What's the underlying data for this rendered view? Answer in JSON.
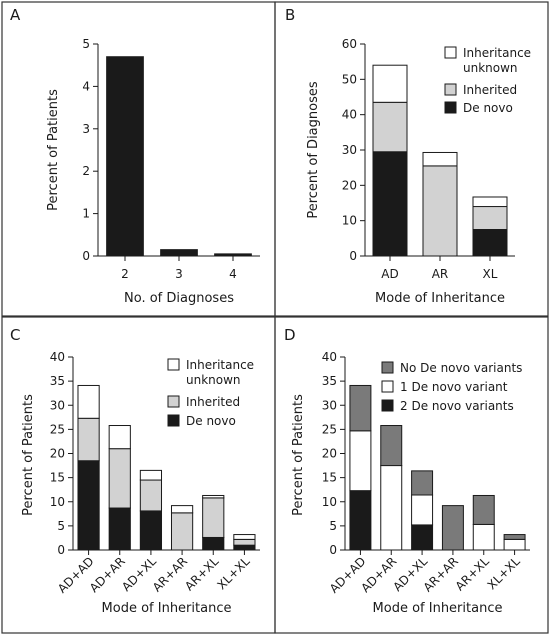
{
  "colors": {
    "black": "#1a1a1a",
    "light_gray": "#d2d2d2",
    "mid_gray": "#7a7a7a",
    "white": "#ffffff",
    "border": "#333333"
  },
  "chart_data": [
    {
      "panel": "A",
      "type": "bar",
      "xlabel": "No. of Diagnoses",
      "ylabel": "Percent of Patients",
      "ylim": [
        0,
        5
      ],
      "yticks": [
        0,
        1,
        2,
        3,
        4,
        5
      ],
      "categories": [
        "2",
        "3",
        "4"
      ],
      "series": [
        {
          "values": [
            4.7,
            0.15,
            0.05
          ],
          "color": "black"
        }
      ],
      "grid": false
    },
    {
      "panel": "B",
      "type": "bar",
      "stacked": true,
      "xlabel": "Mode of Inheritance",
      "ylabel": "Percent of Diagnoses",
      "ylim": [
        0,
        60
      ],
      "yticks": [
        0,
        10,
        20,
        30,
        40,
        50,
        60
      ],
      "categories": [
        "AD",
        "AR",
        "XL"
      ],
      "series": [
        {
          "name": "De novo",
          "values": [
            29.5,
            0,
            7.5
          ],
          "color": "black"
        },
        {
          "name": "Inherited",
          "values": [
            14,
            25.5,
            6.5
          ],
          "color": "light_gray"
        },
        {
          "name": "Inheritance unknown",
          "values": [
            10.5,
            3.8,
            2.7
          ],
          "color": "white"
        }
      ],
      "legend": [
        "Inheritance unknown",
        "Inherited",
        "De novo"
      ],
      "legend_position": "top-right",
      "grid": false
    },
    {
      "panel": "C",
      "type": "bar",
      "stacked": true,
      "xlabel": "Mode of Inheritance",
      "ylabel": "Percent of Patients",
      "ylim": [
        0,
        40
      ],
      "yticks": [
        0,
        5,
        10,
        15,
        20,
        25,
        30,
        35,
        40
      ],
      "categories": [
        "AD+AD",
        "AD+AR",
        "AD+XL",
        "AR+AR",
        "AR+XL",
        "XL+XL"
      ],
      "series": [
        {
          "name": "De novo",
          "values": [
            18.5,
            8.7,
            8.1,
            0,
            2.6,
            1.0
          ],
          "color": "black"
        },
        {
          "name": "Inherited",
          "values": [
            8.8,
            12.3,
            6.4,
            7.7,
            8.2,
            1.2
          ],
          "color": "light_gray"
        },
        {
          "name": "Inheritance unknown",
          "values": [
            6.8,
            4.8,
            2.0,
            1.5,
            0.5,
            1.0
          ],
          "color": "white"
        }
      ],
      "legend": [
        "Inheritance unknown",
        "Inherited",
        "De novo"
      ],
      "legend_position": "top-right",
      "grid": false
    },
    {
      "panel": "D",
      "type": "bar",
      "stacked": true,
      "xlabel": "Mode of Inheritance",
      "ylabel": "Percent of Patients",
      "ylim": [
        0,
        40
      ],
      "yticks": [
        0,
        5,
        10,
        15,
        20,
        25,
        30,
        35,
        40
      ],
      "categories": [
        "AD+AD",
        "AD+AR",
        "AD+XL",
        "AR+AR",
        "AR+XL",
        "XL+XL"
      ],
      "series": [
        {
          "name": "2 De novo variants",
          "values": [
            12.3,
            0,
            5.2,
            0,
            0,
            0
          ],
          "color": "black"
        },
        {
          "name": "1 De novo variant",
          "values": [
            12.4,
            17.5,
            6.2,
            0,
            5.3,
            2.2
          ],
          "color": "white"
        },
        {
          "name": "No De novo variants",
          "values": [
            9.4,
            8.3,
            5.0,
            9.2,
            6.0,
            1.0
          ],
          "color": "mid_gray"
        }
      ],
      "legend": [
        "No De novo variants",
        "1 De novo variant",
        "2 De novo variants"
      ],
      "legend_position": "top-right",
      "grid": false
    }
  ]
}
